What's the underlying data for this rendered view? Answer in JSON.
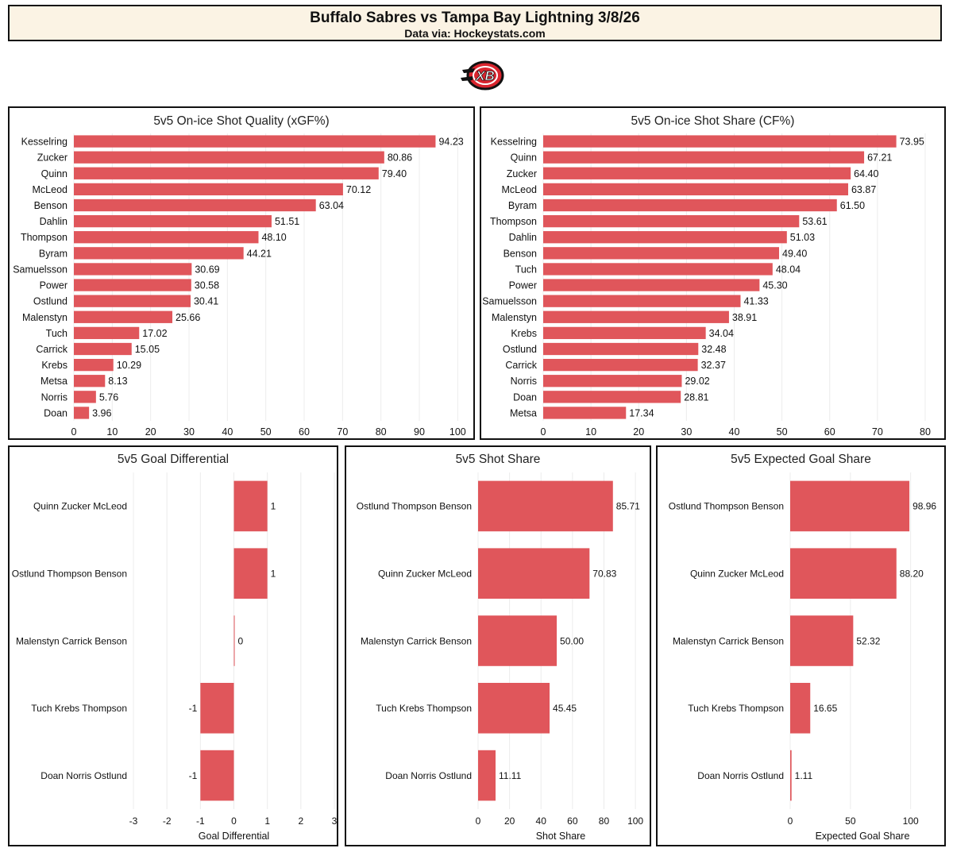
{
  "header": {
    "title": "Buffalo Sabres vs Tampa Bay Lightning 3/8/26",
    "subtitle": "Data via: Hockeystats.com"
  },
  "logo": {
    "icon": "xb-logo-icon",
    "text": "XB"
  },
  "colors": {
    "bar": "#e0565b",
    "grid": "#ececec",
    "panel_border": "#111111",
    "header_bg": "#fbf3e4"
  },
  "chart_data": [
    {
      "id": "xgf",
      "type": "bar",
      "orientation": "horizontal",
      "title": "5v5 On-ice Shot Quality (xGF%)",
      "xlabel": "",
      "categories": [
        "Kesselring",
        "Zucker",
        "Quinn",
        "McLeod",
        "Benson",
        "Dahlin",
        "Thompson",
        "Byram",
        "Samuelsson",
        "Power",
        "Ostlund",
        "Malenstyn",
        "Tuch",
        "Carrick",
        "Krebs",
        "Metsa",
        "Norris",
        "Doan"
      ],
      "values": [
        94.23,
        80.86,
        79.4,
        70.12,
        63.04,
        51.51,
        48.1,
        44.21,
        30.69,
        30.58,
        30.41,
        25.66,
        17.02,
        15.05,
        10.29,
        8.13,
        5.76,
        3.96
      ],
      "labels": [
        "94.23",
        "80.86",
        "79.40",
        "70.12",
        "63.04",
        "51.51",
        "48.10",
        "44.21",
        "30.69",
        "30.58",
        "30.41",
        "25.66",
        "17.02",
        "15.05",
        "10.29",
        "8.13",
        "5.76",
        "3.96"
      ],
      "xlim": [
        0,
        102
      ],
      "xticks": [
        0,
        10,
        20,
        30,
        40,
        50,
        60,
        70,
        80,
        90,
        100
      ],
      "xtick_labels": [
        "0",
        "10",
        "20",
        "30",
        "40",
        "50",
        "60",
        "70",
        "80",
        "90",
        "100"
      ]
    },
    {
      "id": "cf",
      "type": "bar",
      "orientation": "horizontal",
      "title": "5v5 On-ice Shot Share (CF%)",
      "xlabel": "",
      "categories": [
        "Kesselring",
        "Quinn",
        "Zucker",
        "McLeod",
        "Byram",
        "Thompson",
        "Dahlin",
        "Benson",
        "Tuch",
        "Power",
        "Samuelsson",
        "Malenstyn",
        "Krebs",
        "Ostlund",
        "Carrick",
        "Norris",
        "Doan",
        "Metsa"
      ],
      "values": [
        73.95,
        67.21,
        64.4,
        63.87,
        61.5,
        53.61,
        51.03,
        49.4,
        48.04,
        45.3,
        41.33,
        38.91,
        34.04,
        32.48,
        32.37,
        29.02,
        28.81,
        17.34
      ],
      "labels": [
        "73.95",
        "67.21",
        "64.40",
        "63.87",
        "61.50",
        "53.61",
        "51.03",
        "49.40",
        "48.04",
        "45.30",
        "41.33",
        "38.91",
        "34.04",
        "32.48",
        "32.37",
        "29.02",
        "28.81",
        "17.34"
      ],
      "xlim": [
        0,
        82
      ],
      "xticks": [
        0,
        10,
        20,
        30,
        40,
        50,
        60,
        70,
        80
      ],
      "xtick_labels": [
        "0",
        "10",
        "20",
        "30",
        "40",
        "50",
        "60",
        "70",
        "80"
      ]
    },
    {
      "id": "gd",
      "type": "bar",
      "orientation": "horizontal",
      "title": "5v5 Goal Differential",
      "xlabel": "Goal Differential",
      "categories": [
        "Quinn Zucker McLeod",
        "Ostlund Thompson Benson",
        "Malenstyn Carrick Benson",
        "Tuch Krebs Thompson",
        "Doan Norris Ostlund"
      ],
      "values": [
        1,
        1,
        0,
        -1,
        -1
      ],
      "labels": [
        "1",
        "1",
        "0",
        "-1",
        "-1"
      ],
      "xlim": [
        -3,
        3
      ],
      "xticks": [
        -3,
        -2,
        -1,
        0,
        1,
        2,
        3
      ],
      "xtick_labels": [
        "-3",
        "-2",
        "-1",
        "0",
        "1",
        "2",
        "3"
      ]
    },
    {
      "id": "ss",
      "type": "bar",
      "orientation": "horizontal",
      "title": "5v5 Shot Share",
      "xlabel": "Shot Share",
      "categories": [
        "Ostlund Thompson Benson",
        "Quinn Zucker McLeod",
        "Malenstyn Carrick Benson",
        "Tuch Krebs Thompson",
        "Doan Norris Ostlund"
      ],
      "values": [
        85.71,
        70.83,
        50.0,
        45.45,
        11.11
      ],
      "labels": [
        "85.71",
        "70.83",
        "50.00",
        "45.45",
        "11.11"
      ],
      "xlim": [
        0,
        105
      ],
      "xticks": [
        0,
        20,
        40,
        60,
        80,
        100
      ],
      "xtick_labels": [
        "0",
        "20",
        "40",
        "60",
        "80",
        "100"
      ]
    },
    {
      "id": "xgs",
      "type": "bar",
      "orientation": "horizontal",
      "title": "5v5 Expected Goal Share",
      "xlabel": "Expected Goal Share",
      "categories": [
        "Ostlund Thompson Benson",
        "Quinn Zucker McLeod",
        "Malenstyn Carrick Benson",
        "Tuch Krebs Thompson",
        "Doan Norris Ostlund"
      ],
      "values": [
        98.96,
        88.2,
        52.32,
        16.65,
        1.11
      ],
      "labels": [
        "98.96",
        "88.20",
        "52.32",
        "16.65",
        "1.11"
      ],
      "xlim": [
        0,
        120
      ],
      "xticks": [
        0,
        50,
        100
      ],
      "xtick_labels": [
        "0",
        "50",
        "100"
      ]
    }
  ]
}
